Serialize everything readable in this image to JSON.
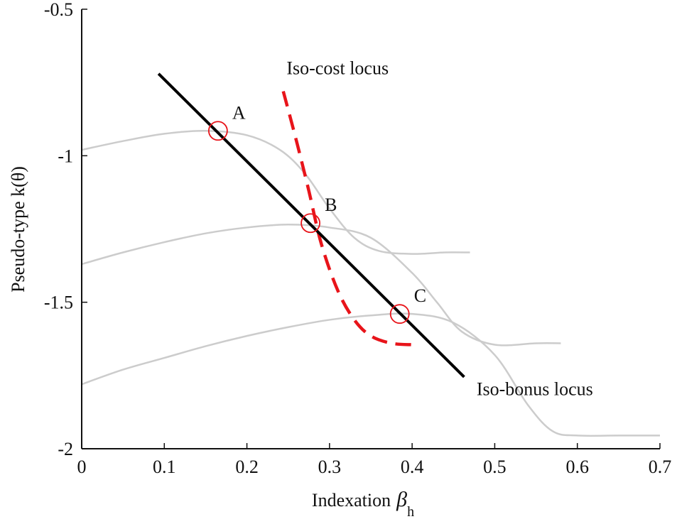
{
  "chart_data": {
    "type": "line",
    "title": "",
    "xlabel": "Indexation",
    "xlabel_symbol": "β",
    "xlabel_sub": "h",
    "ylabel": "Pseudo-type k(θ)",
    "xlim": [
      0,
      0.7
    ],
    "ylim": [
      -2,
      -0.5
    ],
    "x_ticks": [
      "0",
      "0.1",
      "0.2",
      "0.3",
      "0.4",
      "0.5",
      "0.6",
      "0.7"
    ],
    "y_ticks": [
      "-0.5",
      "-1",
      "-1.5",
      "-2"
    ],
    "grid": false,
    "series": [
      {
        "role": "indifference curve (upper)",
        "color": "#cccccc",
        "x": [
          0,
          0.05,
          0.1,
          0.15,
          0.2,
          0.24,
          0.27,
          0.3,
          0.33,
          0.36,
          0.4,
          0.44,
          0.47
        ],
        "y": [
          -0.98,
          -0.95,
          -0.925,
          -0.915,
          -0.93,
          -0.98,
          -1.06,
          -1.18,
          -1.28,
          -1.325,
          -1.335,
          -1.33,
          -1.33
        ]
      },
      {
        "role": "indifference curve (middle)",
        "color": "#cccccc",
        "x": [
          0,
          0.05,
          0.1,
          0.15,
          0.2,
          0.25,
          0.3,
          0.35,
          0.4,
          0.43,
          0.46,
          0.5,
          0.55,
          0.58
        ],
        "y": [
          -1.37,
          -1.33,
          -1.295,
          -1.265,
          -1.245,
          -1.235,
          -1.245,
          -1.28,
          -1.4,
          -1.5,
          -1.6,
          -1.645,
          -1.64,
          -1.64
        ]
      },
      {
        "role": "indifference curve (lower)",
        "color": "#cccccc",
        "x": [
          0,
          0.05,
          0.1,
          0.15,
          0.2,
          0.25,
          0.3,
          0.35,
          0.4,
          0.45,
          0.5,
          0.54,
          0.57,
          0.6,
          0.65,
          0.7
        ],
        "y": [
          -1.78,
          -1.73,
          -1.69,
          -1.65,
          -1.615,
          -1.585,
          -1.56,
          -1.545,
          -1.54,
          -1.57,
          -1.68,
          -1.85,
          -1.94,
          -1.955,
          -1.955,
          -1.955
        ]
      },
      {
        "role": "iso-cost locus",
        "color": "#e8141a",
        "dash": true,
        "x": [
          0.244,
          0.26,
          0.275,
          0.29,
          0.31,
          0.33,
          0.35,
          0.375,
          0.4
        ],
        "y": [
          -0.78,
          -0.95,
          -1.12,
          -1.3,
          -1.46,
          -1.56,
          -1.615,
          -1.64,
          -1.645
        ]
      },
      {
        "role": "iso-bonus locus",
        "color": "#000000",
        "x": [
          0.093,
          0.463
        ],
        "y": [
          -0.72,
          -1.755
        ]
      }
    ],
    "points": [
      {
        "label": "A",
        "x": 0.165,
        "y": -0.915
      },
      {
        "label": "B",
        "x": 0.277,
        "y": -1.23
      },
      {
        "label": "C",
        "x": 0.385,
        "y": -1.54
      }
    ],
    "annotations": [
      {
        "text": "Iso-cost locus",
        "x": 0.248,
        "y": -0.7
      },
      {
        "text": "Iso-bonus locus",
        "x": 0.478,
        "y": -1.795
      }
    ],
    "colors": {
      "axes": "#111111",
      "indifference": "#cccccc",
      "iso_cost": "#e8141a",
      "iso_bonus": "#000000",
      "markers": "#e8141a"
    }
  }
}
